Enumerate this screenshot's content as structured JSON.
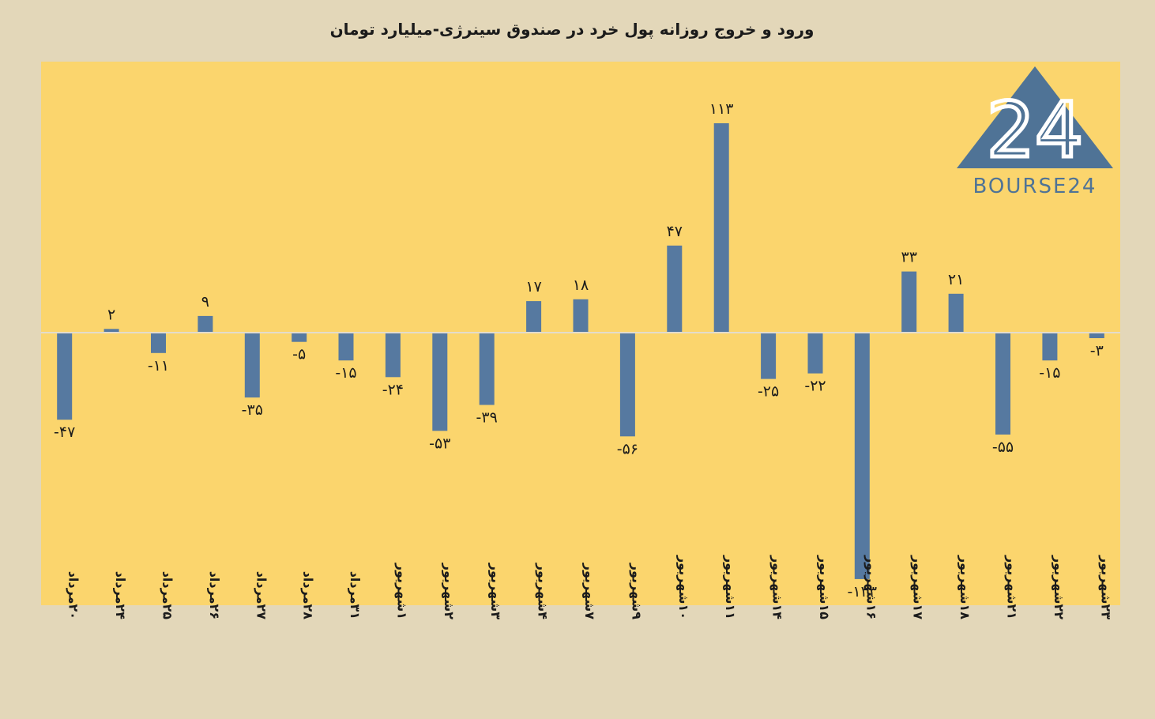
{
  "title": "ورود و خروج روزانه پول خرد در صندوق سینرژی-میلیارد تومان",
  "logo": {
    "text": "BOURSE24",
    "mark": "24"
  },
  "colors": {
    "page_background": "#e3d7b9",
    "plot_background": "#fbd56d",
    "bar": "#5679a0",
    "zero_line": "#e4dccc",
    "text": "#1b1b1b",
    "logo": "#4f7396"
  },
  "chart_data": {
    "type": "bar",
    "title": "ورود و خروج روزانه پول خرد در صندوق سینرژی-میلیارد تومان",
    "categories": [
      "۲۰مرداد",
      "۲۴مرداد",
      "۲۵مرداد",
      "۲۶مرداد",
      "۲۷مرداد",
      "۲۸مرداد",
      "۳۱مرداد",
      "۱شهریور",
      "۲شهریور",
      "۳شهریور",
      "۴شهریور",
      "۷شهریور",
      "۹شهریور",
      "۱۰شهریور",
      "۱۱شهریور",
      "۱۴شهریور",
      "۱۵شهریور",
      "۱۶شهریور",
      "۱۷شهریور",
      "۱۸شهریور",
      "۲۱شهریور",
      "۲۲شهریور",
      "۲۳شهریور"
    ],
    "values": [
      -47,
      2,
      -11,
      9,
      -35,
      -5,
      -15,
      -24,
      -53,
      -39,
      17,
      18,
      -56,
      47,
      113,
      -25,
      -22,
      -133,
      33,
      21,
      -55,
      -15,
      -3
    ],
    "value_labels": [
      "-۴۷",
      "۲",
      "-۱۱",
      "۹",
      "-۳۵",
      "-۵",
      "-۱۵",
      "-۲۴",
      "-۵۳",
      "-۳۹",
      "۱۷",
      "۱۸",
      "-۵۶",
      "۴۷",
      "۱۱۳",
      "-۲۵",
      "-۲۲",
      "-۱۳۳",
      "۳۳",
      "۲۱",
      "-۵۵",
      "-۱۵",
      "-۳"
    ],
    "ylim": [
      -150,
      150
    ],
    "grid": false,
    "legend": "none"
  }
}
